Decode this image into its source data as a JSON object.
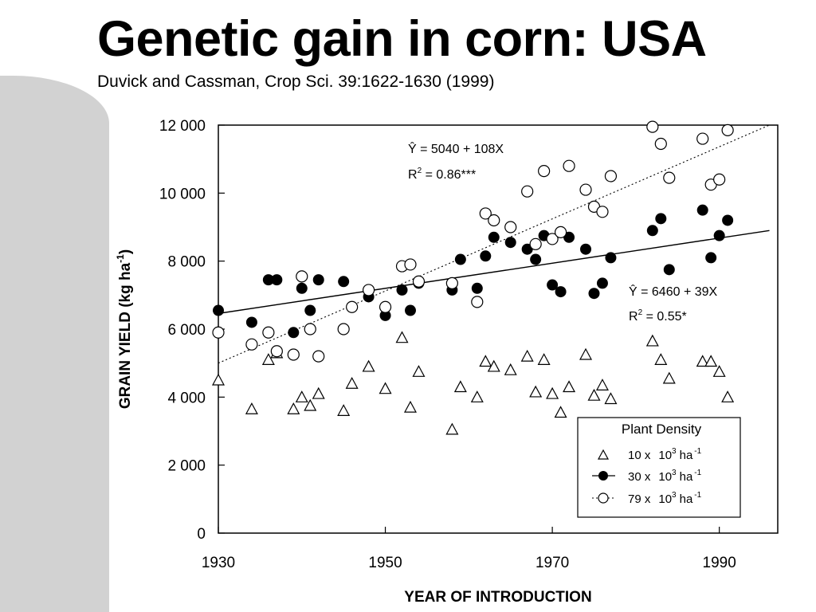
{
  "header": {
    "title": "Genetic gain in corn: USA",
    "subtitle": "Duvick and Cassman, Crop Sci. 39:1622-1630 (1999)"
  },
  "chart_data": {
    "type": "scatter",
    "xlabel": "YEAR OF INTRODUCTION",
    "ylabel": "GRAIN YIELD (kg ha",
    "ylabel_sup": "-1",
    "ylabel_close": ")",
    "xlim": [
      1930,
      1997
    ],
    "ylim": [
      0,
      12000
    ],
    "x_ticks": [
      1930,
      1950,
      1970,
      1990
    ],
    "x_tick_labels": [
      "1930",
      "1950",
      "1970",
      "1990"
    ],
    "y_ticks": [
      0,
      2000,
      4000,
      6000,
      8000,
      10000,
      12000
    ],
    "y_tick_labels": [
      "0",
      "2 000",
      "4 000",
      "6 000",
      "8 000",
      "10 000",
      "12 000"
    ],
    "grid": false,
    "legend": {
      "title": "Plant Density",
      "position": "bottom-right",
      "entries": [
        {
          "marker": "triangle",
          "line": "none",
          "label_pre": "10 x",
          "label_mid": "10",
          "label_sup1": "3",
          "label_unit": "ha",
          "label_sup2": "-1"
        },
        {
          "marker": "filled-circle",
          "line": "solid",
          "label_pre": "30 x",
          "label_mid": "10",
          "label_sup1": "3",
          "label_unit": "ha",
          "label_sup2": "-1"
        },
        {
          "marker": "open-circle",
          "line": "dotted",
          "label_pre": "79 x",
          "label_mid": "10",
          "label_sup1": "3",
          "label_unit": "ha",
          "label_sup2": "-1"
        }
      ]
    },
    "annotations": [
      {
        "id": "eq79",
        "line1_hat": "Ŷ",
        "line1_rest": " = 5040 + 108X",
        "line2_pre": "R",
        "line2_sup": "2",
        "line2_rest": " = 0.86***"
      },
      {
        "id": "eq30",
        "line1_hat": "Ŷ",
        "line1_rest": " = 6460 + 39X",
        "line2_pre": "R",
        "line2_sup": "2",
        "line2_rest": " = 0.55*"
      }
    ],
    "series": [
      {
        "name": "10 x 10^3 ha^-1",
        "marker": "triangle",
        "points": [
          [
            1930,
            4500
          ],
          [
            1934,
            3650
          ],
          [
            1936,
            5100
          ],
          [
            1937,
            5300
          ],
          [
            1939,
            3650
          ],
          [
            1940,
            4000
          ],
          [
            1941,
            3750
          ],
          [
            1942,
            4100
          ],
          [
            1945,
            3600
          ],
          [
            1946,
            4400
          ],
          [
            1948,
            4900
          ],
          [
            1950,
            4250
          ],
          [
            1952,
            5750
          ],
          [
            1953,
            3700
          ],
          [
            1954,
            4750
          ],
          [
            1958,
            3050
          ],
          [
            1959,
            4300
          ],
          [
            1961,
            4000
          ],
          [
            1962,
            5050
          ],
          [
            1963,
            4900
          ],
          [
            1965,
            4800
          ],
          [
            1967,
            5200
          ],
          [
            1968,
            4150
          ],
          [
            1969,
            5100
          ],
          [
            1970,
            4100
          ],
          [
            1971,
            3550
          ],
          [
            1972,
            4300
          ],
          [
            1974,
            5250
          ],
          [
            1975,
            4050
          ],
          [
            1976,
            4350
          ],
          [
            1977,
            3950
          ],
          [
            1982,
            5650
          ],
          [
            1983,
            5100
          ],
          [
            1984,
            4550
          ],
          [
            1988,
            5050
          ],
          [
            1989,
            5050
          ],
          [
            1990,
            4750
          ],
          [
            1991,
            4000
          ]
        ]
      },
      {
        "name": "30 x 10^3 ha^-1",
        "marker": "filled-circle",
        "points": [
          [
            1930,
            6550
          ],
          [
            1934,
            6200
          ],
          [
            1936,
            7450
          ],
          [
            1937,
            7450
          ],
          [
            1939,
            5900
          ],
          [
            1940,
            7200
          ],
          [
            1941,
            6550
          ],
          [
            1942,
            7450
          ],
          [
            1945,
            7400
          ],
          [
            1946,
            6650
          ],
          [
            1948,
            6950
          ],
          [
            1950,
            6400
          ],
          [
            1952,
            7150
          ],
          [
            1953,
            6550
          ],
          [
            1954,
            7350
          ],
          [
            1958,
            7150
          ],
          [
            1959,
            8050
          ],
          [
            1961,
            7200
          ],
          [
            1962,
            8150
          ],
          [
            1963,
            8700
          ],
          [
            1965,
            8550
          ],
          [
            1967,
            8350
          ],
          [
            1968,
            8050
          ],
          [
            1969,
            8750
          ],
          [
            1970,
            7300
          ],
          [
            1971,
            7100
          ],
          [
            1972,
            8700
          ],
          [
            1974,
            8350
          ],
          [
            1975,
            7050
          ],
          [
            1976,
            7350
          ],
          [
            1977,
            8100
          ],
          [
            1982,
            8900
          ],
          [
            1983,
            9250
          ],
          [
            1984,
            7750
          ],
          [
            1988,
            9500
          ],
          [
            1989,
            8100
          ],
          [
            1990,
            8750
          ],
          [
            1991,
            9200
          ]
        ]
      },
      {
        "name": "79 x 10^3 ha^-1",
        "marker": "open-circle",
        "points": [
          [
            1930,
            5900
          ],
          [
            1934,
            5550
          ],
          [
            1936,
            5900
          ],
          [
            1937,
            5350
          ],
          [
            1939,
            5250
          ],
          [
            1940,
            7550
          ],
          [
            1941,
            6000
          ],
          [
            1942,
            5200
          ],
          [
            1945,
            6000
          ],
          [
            1946,
            6650
          ],
          [
            1948,
            7150
          ],
          [
            1950,
            6650
          ],
          [
            1952,
            7850
          ],
          [
            1953,
            7900
          ],
          [
            1954,
            7400
          ],
          [
            1958,
            7350
          ],
          [
            1961,
            6800
          ],
          [
            1962,
            9400
          ],
          [
            1963,
            9200
          ],
          [
            1965,
            9000
          ],
          [
            1967,
            10050
          ],
          [
            1968,
            8500
          ],
          [
            1969,
            10650
          ],
          [
            1970,
            8650
          ],
          [
            1971,
            8850
          ],
          [
            1972,
            10800
          ],
          [
            1974,
            10100
          ],
          [
            1975,
            9600
          ],
          [
            1976,
            9450
          ],
          [
            1977,
            10500
          ],
          [
            1982,
            11950
          ],
          [
            1983,
            11450
          ],
          [
            1984,
            10450
          ],
          [
            1988,
            11600
          ],
          [
            1989,
            10250
          ],
          [
            1990,
            10400
          ],
          [
            1991,
            11850
          ]
        ]
      }
    ],
    "fits": [
      {
        "name": "30 x 10^3 ha^-1 fit",
        "style": "solid",
        "x": [
          1930,
          1996
        ],
        "y": [
          6460,
          8900
        ]
      },
      {
        "name": "79 x 10^3 ha^-1 fit",
        "style": "dotted",
        "x": [
          1930,
          1996
        ],
        "y": [
          5000,
          12000
        ]
      }
    ]
  }
}
